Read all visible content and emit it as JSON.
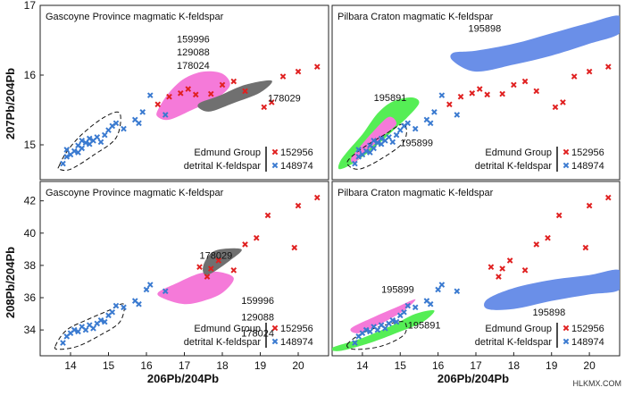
{
  "chart_data": [
    {
      "type": "scatter",
      "title": "Gascoyne Province magmatic K-feldspar",
      "xlabel": "",
      "ylabel": "207Pb/204Pb",
      "ylim": [
        14.5,
        17.0
      ],
      "xlim": [
        13.2,
        20.8
      ],
      "yticks": [
        15,
        16,
        17
      ],
      "series": [
        {
          "name": "152956",
          "marker": "x",
          "color": "#e02020",
          "x": [
            16.3,
            16.6,
            16.9,
            17.1,
            17.3,
            17.7,
            18.0,
            18.3,
            18.6,
            19.1,
            19.3,
            19.6,
            20.0,
            20.5
          ],
          "y": [
            15.58,
            15.69,
            15.74,
            15.8,
            15.72,
            15.73,
            15.86,
            15.91,
            15.77,
            15.54,
            15.61,
            15.98,
            16.05,
            16.12
          ]
        },
        {
          "name": "148974",
          "marker": "x",
          "color": "#3a7ad0",
          "x": [
            13.8,
            13.9,
            14.0,
            14.1,
            14.2,
            14.2,
            14.3,
            14.4,
            14.5,
            14.5,
            14.6,
            14.7,
            14.8,
            14.9,
            15.0,
            15.1,
            15.2,
            15.4,
            15.7,
            15.8,
            15.9,
            16.1,
            16.5,
            13.9,
            14.3
          ],
          "y": [
            14.73,
            14.83,
            14.86,
            14.91,
            14.89,
            14.99,
            14.95,
            15.03,
            15.01,
            15.09,
            15.06,
            15.11,
            15.04,
            15.14,
            15.21,
            15.27,
            15.31,
            15.23,
            15.36,
            15.31,
            15.47,
            15.71,
            15.43,
            14.93,
            15.06
          ]
        }
      ],
      "regions": [
        {
          "name": "159996 129088 178024",
          "color": "#f57ad9"
        },
        {
          "name": "178029",
          "color": "#707070"
        }
      ],
      "annotations": [
        "159996",
        "129088",
        "178024",
        "178029"
      ],
      "legend": {
        "title_lines": [
          "Edmund Group",
          "detrital K-feldspar"
        ],
        "entries": [
          "152956",
          "148974"
        ],
        "position": "bottom-right"
      }
    },
    {
      "type": "scatter",
      "title": "Pilbara Craton magmatic K-feldspar",
      "xlabel": "",
      "ylabel": "",
      "ylim": [
        14.5,
        17.0
      ],
      "xlim": [
        13.2,
        20.8
      ],
      "series": [
        {
          "name": "152956",
          "marker": "x",
          "color": "#e02020",
          "x": [
            16.3,
            16.6,
            16.9,
            17.1,
            17.3,
            17.7,
            18.0,
            18.3,
            18.6,
            19.1,
            19.3,
            19.6,
            20.0,
            20.5
          ],
          "y": [
            15.58,
            15.69,
            15.74,
            15.8,
            15.72,
            15.73,
            15.86,
            15.91,
            15.77,
            15.54,
            15.61,
            15.98,
            16.05,
            16.12
          ]
        },
        {
          "name": "148974",
          "marker": "x",
          "color": "#3a7ad0",
          "x": [
            13.8,
            13.9,
            14.0,
            14.1,
            14.2,
            14.2,
            14.3,
            14.4,
            14.5,
            14.5,
            14.6,
            14.7,
            14.8,
            14.9,
            15.0,
            15.1,
            15.2,
            15.4,
            15.7,
            15.8,
            15.9,
            16.1,
            16.5,
            13.9,
            14.3
          ],
          "y": [
            14.73,
            14.83,
            14.86,
            14.91,
            14.89,
            14.99,
            14.95,
            15.03,
            15.01,
            15.09,
            15.06,
            15.11,
            15.04,
            15.14,
            15.21,
            15.27,
            15.31,
            15.23,
            15.36,
            15.31,
            15.47,
            15.71,
            15.43,
            14.93,
            15.06
          ]
        }
      ],
      "regions": [
        {
          "name": "195898",
          "color": "#6a8fe8"
        },
        {
          "name": "195891",
          "color": "#55ee55"
        },
        {
          "name": "195899",
          "color": "#f57ad9"
        }
      ],
      "annotations": [
        "195898",
        "195891",
        "195899"
      ],
      "legend": {
        "title_lines": [
          "Edmund Group",
          "detrital K-feldspar"
        ],
        "entries": [
          "152956",
          "148974"
        ],
        "position": "bottom-right"
      }
    },
    {
      "type": "scatter",
      "title": "Gascoyne Province magmatic K-feldspar",
      "xlabel": "206Pb/204Pb",
      "ylabel": "208Pb/204Pb",
      "ylim": [
        32.4,
        43.2
      ],
      "xlim": [
        13.2,
        20.8
      ],
      "xticks": [
        14,
        15,
        16,
        17,
        18,
        19,
        20
      ],
      "yticks": [
        34,
        36,
        38,
        40,
        42
      ],
      "series": [
        {
          "name": "152956",
          "marker": "x",
          "color": "#e02020",
          "x": [
            17.6,
            17.7,
            17.9,
            18.3,
            18.6,
            18.9,
            19.2,
            19.9,
            20.0,
            20.5,
            17.4
          ],
          "y": [
            37.3,
            37.8,
            38.3,
            37.7,
            39.3,
            39.7,
            41.1,
            39.1,
            41.7,
            42.2,
            37.9
          ]
        },
        {
          "name": "148974",
          "marker": "x",
          "color": "#3a7ad0",
          "x": [
            13.8,
            13.9,
            14.0,
            14.1,
            14.2,
            14.3,
            14.4,
            14.5,
            14.6,
            14.7,
            14.8,
            14.9,
            15.0,
            15.1,
            15.2,
            15.4,
            15.7,
            15.8,
            16.0,
            16.1,
            16.5
          ],
          "y": [
            33.2,
            33.6,
            33.8,
            34.0,
            33.9,
            34.2,
            34.0,
            34.3,
            34.1,
            34.4,
            34.6,
            34.5,
            34.9,
            35.1,
            35.5,
            35.4,
            35.8,
            35.6,
            36.5,
            36.8,
            36.4
          ]
        }
      ],
      "regions": [
        {
          "name": "159996 129088 178024",
          "color": "#f57ad9"
        },
        {
          "name": "178029",
          "color": "#707070"
        }
      ],
      "annotations": [
        "178029",
        "159996",
        "129088",
        "178024"
      ],
      "legend": {
        "title_lines": [
          "Edmund Group",
          "detrital K-feldspar"
        ],
        "entries": [
          "152956",
          "148974"
        ],
        "position": "bottom-right"
      }
    },
    {
      "type": "scatter",
      "title": "Pilbara Craton magmatic K-feldspar",
      "xlabel": "206Pb/204Pb",
      "ylabel": "",
      "ylim": [
        32.4,
        43.2
      ],
      "xlim": [
        13.2,
        20.8
      ],
      "xticks": [
        14,
        15,
        16,
        17,
        18,
        19,
        20
      ],
      "series": [
        {
          "name": "152956",
          "marker": "x",
          "color": "#e02020",
          "x": [
            17.6,
            17.7,
            17.9,
            18.3,
            18.6,
            18.9,
            19.2,
            19.9,
            20.0,
            20.5,
            17.4
          ],
          "y": [
            37.3,
            37.8,
            38.3,
            37.7,
            39.3,
            39.7,
            41.1,
            39.1,
            41.7,
            42.2,
            37.9
          ]
        },
        {
          "name": "148974",
          "marker": "x",
          "color": "#3a7ad0",
          "x": [
            13.8,
            13.9,
            14.0,
            14.1,
            14.2,
            14.3,
            14.4,
            14.5,
            14.6,
            14.7,
            14.8,
            14.9,
            15.0,
            15.1,
            15.2,
            15.4,
            15.7,
            15.8,
            16.0,
            16.1,
            16.5
          ],
          "y": [
            33.2,
            33.6,
            33.8,
            34.0,
            33.9,
            34.2,
            34.0,
            34.3,
            34.1,
            34.4,
            34.6,
            34.5,
            34.9,
            35.1,
            35.5,
            35.4,
            35.8,
            35.6,
            36.5,
            36.8,
            36.4
          ]
        }
      ],
      "regions": [
        {
          "name": "195898",
          "color": "#6a8fe8"
        },
        {
          "name": "195891",
          "color": "#55ee55"
        },
        {
          "name": "195899",
          "color": "#f57ad9"
        }
      ],
      "annotations": [
        "195899",
        "195891",
        "195898"
      ],
      "legend": {
        "title_lines": [
          "Edmund Group",
          "detrital K-feldspar"
        ],
        "entries": [
          "152956",
          "148974"
        ],
        "position": "bottom-right"
      }
    }
  ],
  "watermark": "HLKMX.COM"
}
